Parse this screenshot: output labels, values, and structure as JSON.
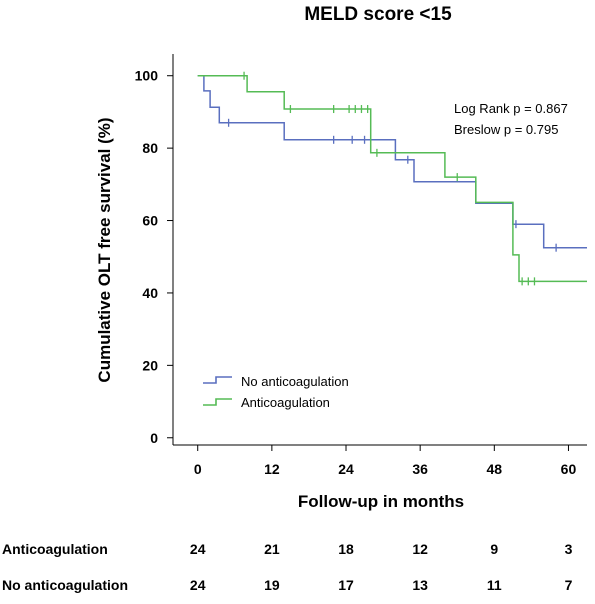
{
  "chart_data": {
    "type": "line",
    "subtype": "kaplan-meier",
    "title": "MELD score <15",
    "xlabel": "Follow-up in months",
    "ylabel": "Cumulative OLT free survival (%)",
    "xlim": [
      -4,
      63
    ],
    "ylim": [
      -2,
      106
    ],
    "xticks": [
      0,
      12,
      24,
      36,
      48,
      60
    ],
    "yticks": [
      0,
      20,
      40,
      60,
      80,
      100
    ],
    "grid": false,
    "legend_position": "bottom-left",
    "annotations": [
      "Log Rank p = 0.867",
      "Breslow p = 0.795"
    ],
    "series": [
      {
        "name": "No anticoagulation",
        "color": "#5a6fbf",
        "steps": [
          [
            0,
            100
          ],
          [
            1,
            100
          ],
          [
            1,
            95.8
          ],
          [
            2,
            95.8
          ],
          [
            2,
            91.3
          ],
          [
            3.5,
            91.3
          ],
          [
            3.5,
            87
          ],
          [
            14,
            87
          ],
          [
            14,
            82.3
          ],
          [
            32,
            82.3
          ],
          [
            32,
            76.8
          ],
          [
            35,
            76.8
          ],
          [
            35,
            70.7
          ],
          [
            45,
            70.7
          ],
          [
            45,
            64.8
          ],
          [
            51,
            64.8
          ],
          [
            51,
            59
          ],
          [
            56,
            59
          ],
          [
            56,
            52.5
          ],
          [
            63,
            52.5
          ]
        ],
        "censored": [
          [
            5,
            87
          ],
          [
            22,
            82.3
          ],
          [
            25,
            82.3
          ],
          [
            27,
            82.3
          ],
          [
            34,
            76.8
          ],
          [
            51.5,
            59
          ],
          [
            58,
            52.5
          ]
        ]
      },
      {
        "name": "Anticoagulation",
        "color": "#55bb55",
        "steps": [
          [
            0,
            100
          ],
          [
            8,
            100
          ],
          [
            8,
            95.6
          ],
          [
            14,
            95.6
          ],
          [
            14,
            90.8
          ],
          [
            28,
            90.8
          ],
          [
            28,
            78.7
          ],
          [
            40,
            78.7
          ],
          [
            40,
            72
          ],
          [
            45,
            72
          ],
          [
            45,
            65
          ],
          [
            51,
            65
          ],
          [
            51,
            50.5
          ],
          [
            52,
            50.5
          ],
          [
            52,
            43.2
          ],
          [
            63,
            43.2
          ]
        ],
        "censored": [
          [
            7.5,
            100
          ],
          [
            15,
            90.8
          ],
          [
            22,
            90.8
          ],
          [
            24.5,
            90.8
          ],
          [
            25.5,
            90.8
          ],
          [
            26.5,
            90.8
          ],
          [
            27.5,
            90.8
          ],
          [
            29,
            78.7
          ],
          [
            42,
            72
          ],
          [
            52.5,
            43.2
          ],
          [
            53.5,
            43.2
          ],
          [
            54.5,
            43.2
          ]
        ]
      }
    ],
    "risk_table": {
      "times": [
        0,
        12,
        24,
        36,
        48,
        60
      ],
      "rows": [
        {
          "label": "Anticoagulation",
          "values": [
            24,
            21,
            18,
            12,
            9,
            3
          ]
        },
        {
          "label": "No anticoagulation",
          "values": [
            24,
            19,
            17,
            13,
            11,
            7
          ]
        }
      ]
    }
  }
}
